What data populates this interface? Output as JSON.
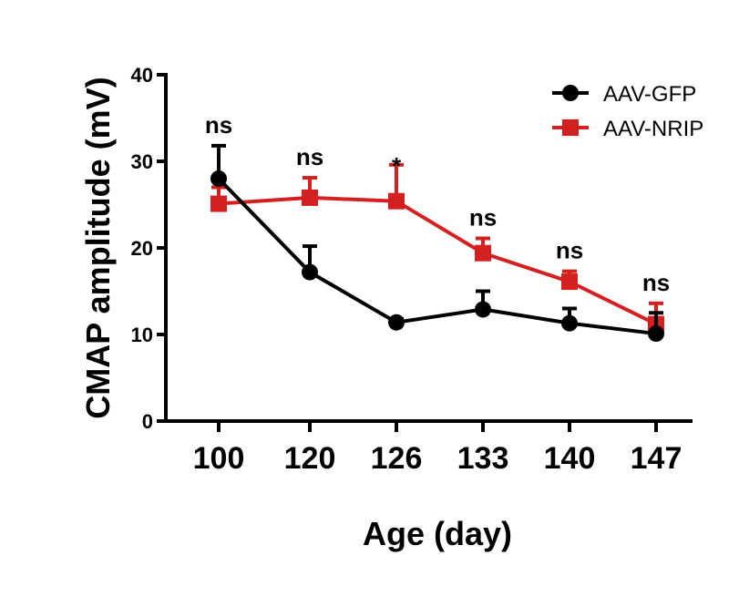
{
  "chart_data": {
    "type": "line",
    "xlabel": "Age (day)",
    "ylabel": "CMAP amplitude (mV)",
    "categories": [
      "100",
      "120",
      "126",
      "133",
      "140",
      "147"
    ],
    "ylim": [
      0,
      40
    ],
    "yticks": [
      "0",
      "10",
      "20",
      "30",
      "40"
    ],
    "grid": false,
    "legend_position": "top-right",
    "series": [
      {
        "name": "AAV-GFP",
        "color": "#000000",
        "marker": "circle",
        "values": [
          28.0,
          17.2,
          11.4,
          12.9,
          11.3,
          10.1
        ],
        "error_upper": [
          31.8,
          20.2,
          11.8,
          15.0,
          13.0,
          12.5
        ]
      },
      {
        "name": "AAV-NRIP",
        "color": "#d42020",
        "marker": "square",
        "values": [
          25.1,
          25.8,
          25.4,
          19.4,
          16.1,
          11.2
        ],
        "error_upper": [
          27.0,
          28.1,
          29.6,
          21.1,
          17.3,
          13.6
        ]
      }
    ],
    "annotations": [
      "ns",
      "ns",
      "*",
      "ns",
      "ns",
      "ns"
    ]
  }
}
